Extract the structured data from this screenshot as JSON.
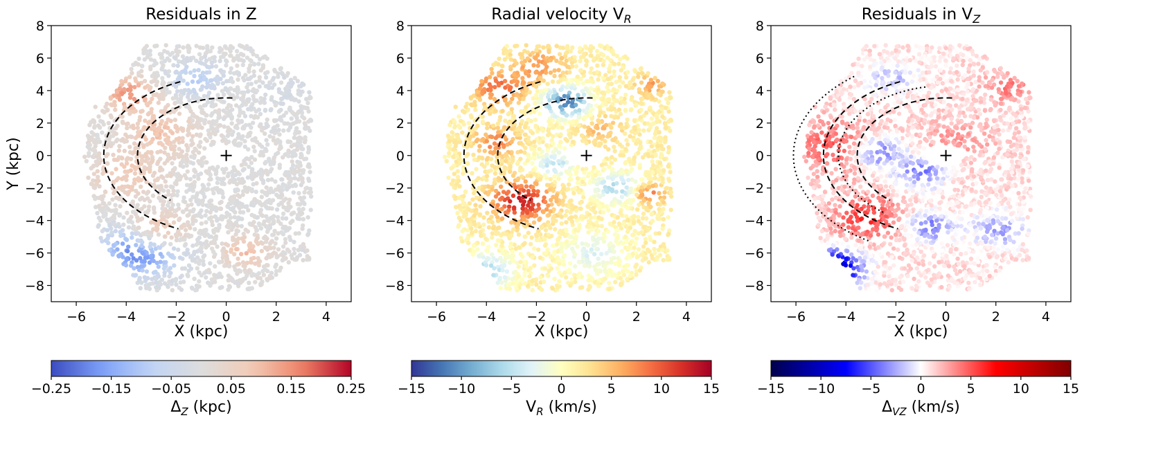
{
  "chart_data": [
    {
      "type": "scatter",
      "title": "Residuals in Z",
      "title_sub": "",
      "xlabel": "X (kpc)",
      "ylabel": "Y (kpc)",
      "xlim": [
        -7,
        5
      ],
      "ylim": [
        -9,
        8
      ],
      "xticks": [
        -6,
        -4,
        -2,
        0,
        2,
        4
      ],
      "yticks": [
        -8,
        -6,
        -4,
        -2,
        0,
        2,
        4,
        6,
        8
      ],
      "center_marker": {
        "x": 0,
        "y": 0,
        "symbol": "+"
      },
      "colorbar": {
        "label_main": "Δ",
        "label_sub": "Z",
        "label_unit": " (kpc)",
        "range": [
          -0.25,
          0.25
        ],
        "ticks": [
          "−0.25",
          "−0.15",
          "−0.05",
          "0.05",
          "0.15",
          "0.25"
        ],
        "colormap": "coolwarm"
      },
      "arms": [
        {
          "style": "dashed",
          "radius_kpc": 4.9,
          "angle_deg": [
            112,
            247
          ]
        },
        {
          "style": "dashed",
          "radius_kpc": 3.55,
          "angle_deg": [
            86,
            231
          ]
        }
      ],
      "regions": [
        {
          "x": -3.4,
          "y": -5.8,
          "r": 1.4,
          "value": -0.23
        },
        {
          "x": -2.8,
          "y": -4.8,
          "r": 1.1,
          "value": 0.17
        },
        {
          "x": -3.9,
          "y": 3.8,
          "r": 1.0,
          "value": 0.15
        },
        {
          "x": -2.7,
          "y": 1.5,
          "r": 1.4,
          "value": 0.09
        },
        {
          "x": -4.0,
          "y": -1.2,
          "r": 1.4,
          "value": 0.08
        },
        {
          "x": -1.2,
          "y": 4.7,
          "r": 1.0,
          "value": -0.09
        },
        {
          "x": 0.8,
          "y": -5.9,
          "r": 0.9,
          "value": 0.1
        },
        {
          "x": 2.4,
          "y": 3.8,
          "r": 1.2,
          "value": -0.02
        },
        {
          "x": 1.8,
          "y": -2.5,
          "r": 1.8,
          "value": 0.0
        }
      ],
      "default_value": 0.0
    },
    {
      "type": "scatter",
      "title": "Radial velocity V",
      "title_sub": "R",
      "xlabel": "X (kpc)",
      "ylabel": "",
      "xlim": [
        -7,
        5
      ],
      "ylim": [
        -9,
        8
      ],
      "xticks": [
        -6,
        -4,
        -2,
        0,
        2,
        4
      ],
      "yticks": [
        -8,
        -6,
        -4,
        -2,
        0,
        2,
        4,
        6,
        8
      ],
      "center_marker": {
        "x": 0,
        "y": 0,
        "symbol": "+"
      },
      "colorbar": {
        "label_main": "V",
        "label_sub": "R",
        "label_unit": " (km/s)",
        "range": [
          -15,
          15
        ],
        "ticks": [
          "−15",
          "−10",
          "−5",
          "0",
          "5",
          "10",
          "15"
        ],
        "colormap": "RdYlBu_r"
      },
      "arms": [
        {
          "style": "dashed",
          "radius_kpc": 4.9,
          "angle_deg": [
            112,
            247
          ]
        },
        {
          "style": "dashed",
          "radius_kpc": 3.55,
          "angle_deg": [
            86,
            231
          ]
        }
      ],
      "regions": [
        {
          "x": -2.6,
          "y": -2.8,
          "r": 1.2,
          "value": 13
        },
        {
          "x": -3.5,
          "y": 4.2,
          "r": 1.1,
          "value": 9
        },
        {
          "x": -3.6,
          "y": 0.8,
          "r": 0.9,
          "value": 8
        },
        {
          "x": -0.8,
          "y": 3.3,
          "r": 0.9,
          "value": -12
        },
        {
          "x": -1.8,
          "y": 5.5,
          "r": 1.0,
          "value": 7
        },
        {
          "x": -4.1,
          "y": -7.2,
          "r": 1.1,
          "value": -6
        },
        {
          "x": 1.2,
          "y": -2.0,
          "r": 0.9,
          "value": -6
        },
        {
          "x": 2.5,
          "y": -2.4,
          "r": 0.6,
          "value": 9
        },
        {
          "x": 2.6,
          "y": 4.3,
          "r": 0.6,
          "value": 7
        },
        {
          "x": -1.3,
          "y": -0.5,
          "r": 0.8,
          "value": -5
        },
        {
          "x": 0.3,
          "y": -6.0,
          "r": 1.3,
          "value": -3
        },
        {
          "x": 0.5,
          "y": 1.6,
          "r": 0.9,
          "value": 5
        }
      ],
      "default_value": 1.5
    },
    {
      "type": "scatter",
      "title": "Residuals in V",
      "title_sub": "Z",
      "xlabel": "X (kpc)",
      "ylabel": "",
      "xlim": [
        -7,
        5
      ],
      "ylim": [
        -9,
        8
      ],
      "xticks": [
        -6,
        -4,
        -2,
        0,
        2,
        4
      ],
      "yticks": [
        -8,
        -6,
        -4,
        -2,
        0,
        2,
        4,
        6,
        8
      ],
      "center_marker": {
        "x": 0,
        "y": 0,
        "symbol": "+"
      },
      "colorbar": {
        "label_main": "Δ",
        "label_sub": "VZ",
        "label_unit": " (km/s)",
        "range": [
          -15,
          15
        ],
        "ticks": [
          "−15",
          "−10",
          "−5",
          "0",
          "5",
          "10",
          "15"
        ],
        "colormap": "seismic"
      },
      "arms": [
        {
          "style": "dashed",
          "radius_kpc": 4.9,
          "angle_deg": [
            112,
            247
          ]
        },
        {
          "style": "dashed",
          "radius_kpc": 3.55,
          "angle_deg": [
            86,
            231
          ]
        },
        {
          "style": "dotted",
          "radius_kpc": 6.1,
          "angle_deg": [
            127,
            240
          ]
        },
        {
          "style": "dotted",
          "radius_kpc": 4.3,
          "angle_deg": [
            101,
            235
          ]
        }
      ],
      "regions": [
        {
          "x": -4.6,
          "y": -7.0,
          "r": 1.1,
          "value": -13
        },
        {
          "x": -4.5,
          "y": 0.5,
          "r": 1.6,
          "value": 5
        },
        {
          "x": -3.2,
          "y": -3.8,
          "r": 1.3,
          "value": 6
        },
        {
          "x": -2.8,
          "y": 0.2,
          "r": 0.9,
          "value": -5
        },
        {
          "x": -1.0,
          "y": -1.0,
          "r": 1.0,
          "value": -4
        },
        {
          "x": -0.6,
          "y": -4.4,
          "r": 0.9,
          "value": -4
        },
        {
          "x": 0.5,
          "y": 1.0,
          "r": 1.4,
          "value": 3
        },
        {
          "x": 2.5,
          "y": 4.2,
          "r": 0.9,
          "value": 4
        },
        {
          "x": 2.1,
          "y": -4.6,
          "r": 1.0,
          "value": -3
        },
        {
          "x": -2.2,
          "y": 4.8,
          "r": 1.0,
          "value": -2
        }
      ],
      "default_value": 1.0
    }
  ]
}
